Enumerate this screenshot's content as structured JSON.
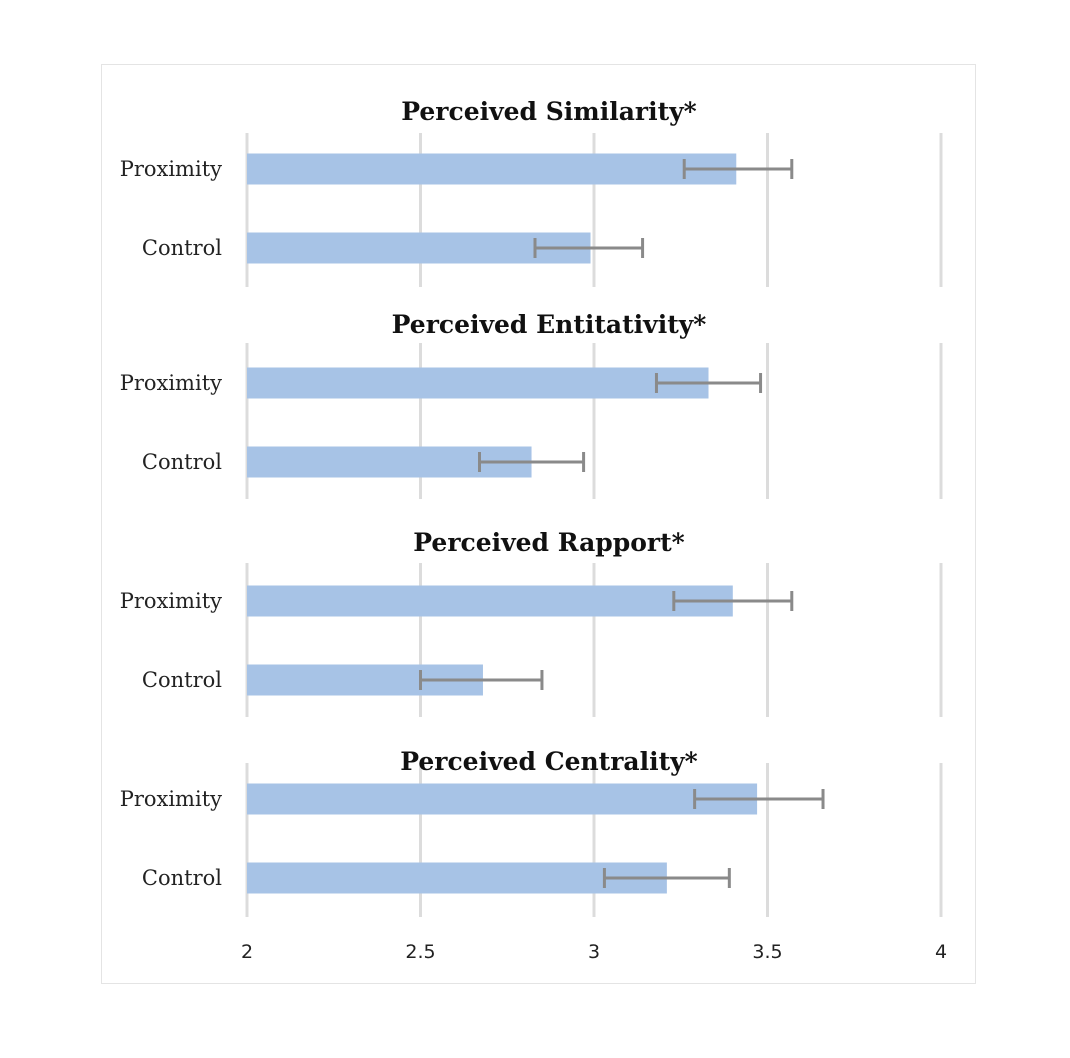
{
  "chart_data": {
    "type": "bar",
    "orientation": "horizontal",
    "xlim": [
      2,
      4
    ],
    "x_ticks": [
      "2",
      "2.5",
      "3",
      "3.5",
      "4"
    ],
    "grid": "vertical",
    "bar_color": "#a7c3e6",
    "error_bar_color": "#8a8a8a",
    "panels": [
      {
        "title": "Perceived Similarity*",
        "categories": [
          "Proximity",
          "Control"
        ],
        "values": [
          3.41,
          2.99
        ],
        "error_low": [
          3.26,
          2.83
        ],
        "error_high": [
          3.57,
          3.14
        ]
      },
      {
        "title": "Perceived Entitativity*",
        "categories": [
          "Proximity",
          "Control"
        ],
        "values": [
          3.33,
          2.82
        ],
        "error_low": [
          3.18,
          2.67
        ],
        "error_high": [
          3.48,
          2.97
        ]
      },
      {
        "title": "Perceived Rapport*",
        "categories": [
          "Proximity",
          "Control"
        ],
        "values": [
          3.4,
          2.68
        ],
        "error_low": [
          3.23,
          2.5
        ],
        "error_high": [
          3.57,
          2.85
        ]
      },
      {
        "title": "Perceived Centrality*",
        "categories": [
          "Proximity",
          "Control"
        ],
        "values": [
          3.47,
          3.21
        ],
        "error_low": [
          3.29,
          3.03
        ],
        "error_high": [
          3.66,
          3.39
        ]
      }
    ]
  }
}
